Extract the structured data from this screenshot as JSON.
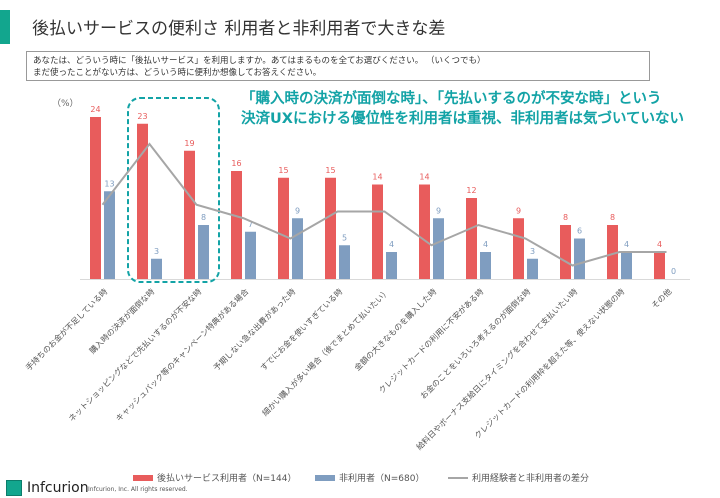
{
  "header": {
    "title": "後払いサービスの便利さ 利用者と非利用者で大きな差"
  },
  "question": {
    "line1": "あなたは、どういう時に「後払いサービス」を利用しますか。あてはまるものを全てお選びください。 （いくつでも）",
    "line2": "まだ使ったことがない方は、どういう時に便利か想像してお答えください。"
  },
  "callout": {
    "line1": "「購入時の決済が面倒な時」、「先払いするのが不安な時」という",
    "line2": "決済UXにおける優位性を利用者は重視、非利用者は気づいていない"
  },
  "colors": {
    "users": "#e85c5c",
    "nonusers": "#7f9dc0",
    "diff": "#a6a6a6",
    "accent": "#12a68e",
    "callout": "#13a3a6"
  },
  "chart_data": {
    "type": "bar",
    "unit_label": "（%）",
    "categories": [
      "手持ちのお金が不足している時",
      "購入時の決済が面倒な時",
      "ネットショッピングなどで先払いするのが不安な時",
      "キャッシュバック等のキャンペーン特典がある場合",
      "予期しない急な出費があった時",
      "すでにお金を使いすぎている時",
      "細かい購入が多い場合（後でまとめて払いたい）",
      "金額の大きなものを購入した時",
      "クレジットカードの利用に不安がある時",
      "お金のことをいろいろ考えるのが面倒な時",
      "給料日やボーナス支給日にタイミングを合わせて支払いたい時",
      "クレジットカードの利用枠を超えた等、使えない状態の時",
      "その他"
    ],
    "series": [
      {
        "name": "後払いサービス利用者（N=144）",
        "type": "bar",
        "values": [
          24,
          23,
          19,
          16,
          15,
          15,
          14,
          14,
          12,
          9,
          8,
          8,
          4
        ]
      },
      {
        "name": "非利用者（N=680）",
        "type": "bar",
        "values": [
          13,
          3,
          8,
          7,
          9,
          5,
          4,
          9,
          4,
          3,
          6,
          4,
          0
        ]
      },
      {
        "name": "利用経験者と非利用者の差分",
        "type": "line",
        "values": [
          11,
          20,
          11,
          9,
          6,
          10,
          10,
          5,
          8,
          6,
          2,
          4,
          4
        ]
      }
    ],
    "highlighted_categories": [
      1,
      2
    ],
    "grid": false,
    "legend": "bottom"
  },
  "footer": {
    "logo": "Infcurion",
    "copyright": "Infcurion, Inc.  All rights reserved."
  }
}
